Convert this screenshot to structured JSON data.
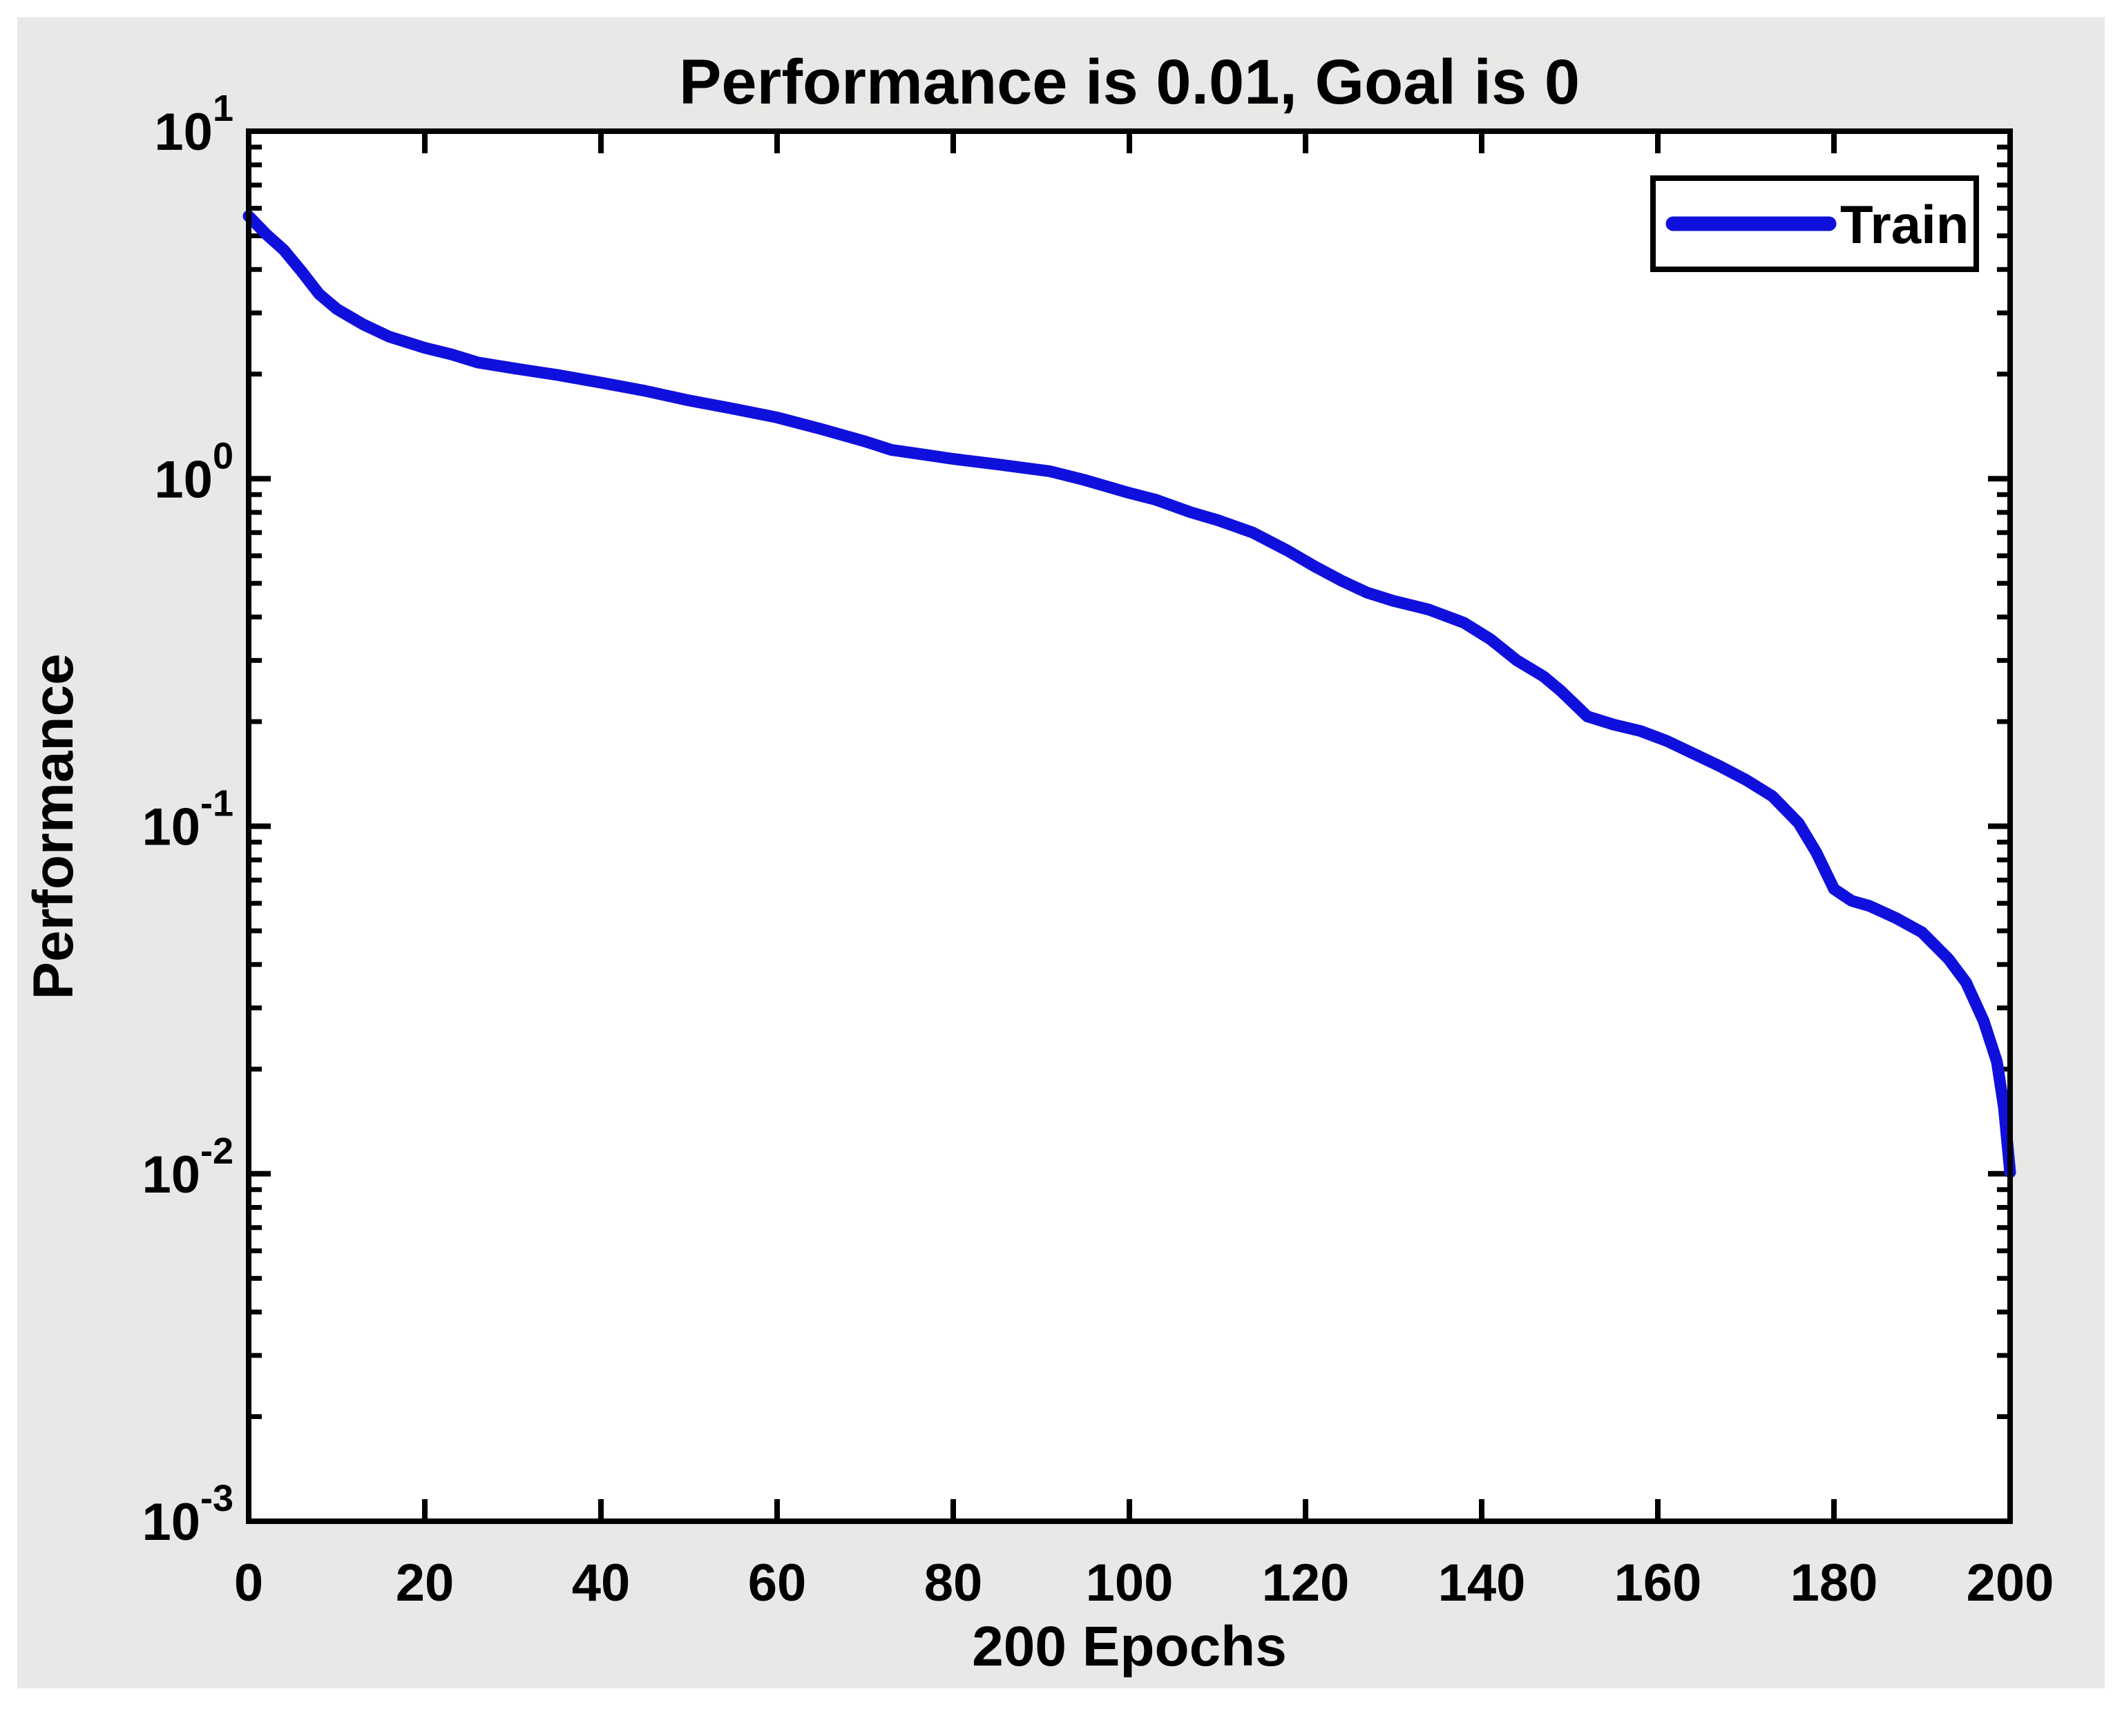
{
  "figure": {
    "background_color": "#ffffff",
    "panel_color": "#e8e8e6",
    "plot_background": "#ffffff",
    "axis_color": "#000000"
  },
  "chart_data": {
    "type": "line",
    "title": "Performance is 0.01, Goal is 0",
    "xlabel": "200 Epochs",
    "ylabel": "Performance",
    "x_range": [
      0,
      200
    ],
    "y_scale": "log10",
    "y_range": [
      0.001,
      10
    ],
    "x_ticks": [
      0,
      20,
      40,
      60,
      80,
      100,
      120,
      140,
      160,
      180,
      200
    ],
    "y_tick_exponents": [
      1,
      0,
      -1,
      -2,
      -3
    ],
    "grid": false,
    "legend": {
      "position": "top-right",
      "entries": [
        {
          "label": "Train",
          "color": "#1010dd"
        }
      ]
    },
    "series": [
      {
        "name": "Train",
        "color": "#1010dd",
        "points": [
          [
            0,
            5.7
          ],
          [
            2,
            5.05
          ],
          [
            4,
            4.55
          ],
          [
            6,
            3.95
          ],
          [
            8,
            3.4
          ],
          [
            10,
            3.08
          ],
          [
            13,
            2.78
          ],
          [
            16,
            2.56
          ],
          [
            20,
            2.38
          ],
          [
            23,
            2.28
          ],
          [
            26,
            2.16
          ],
          [
            30,
            2.08
          ],
          [
            35,
            1.99
          ],
          [
            40,
            1.89
          ],
          [
            45,
            1.79
          ],
          [
            50,
            1.68
          ],
          [
            55,
            1.59
          ],
          [
            60,
            1.5
          ],
          [
            65,
            1.39
          ],
          [
            70,
            1.28
          ],
          [
            73,
            1.21
          ],
          [
            77,
            1.17
          ],
          [
            80,
            1.14
          ],
          [
            85,
            1.1
          ],
          [
            91,
            1.05
          ],
          [
            95,
            0.99
          ],
          [
            100,
            0.91
          ],
          [
            103,
            0.87
          ],
          [
            107,
            0.8
          ],
          [
            110,
            0.76
          ],
          [
            114,
            0.7
          ],
          [
            118,
            0.62
          ],
          [
            121,
            0.56
          ],
          [
            124,
            0.51
          ],
          [
            127,
            0.47
          ],
          [
            130,
            0.445
          ],
          [
            134,
            0.42
          ],
          [
            138,
            0.385
          ],
          [
            141,
            0.345
          ],
          [
            144,
            0.3
          ],
          [
            147,
            0.27
          ],
          [
            149,
            0.245
          ],
          [
            152,
            0.207
          ],
          [
            155,
            0.196
          ],
          [
            158,
            0.188
          ],
          [
            161,
            0.176
          ],
          [
            164,
            0.162
          ],
          [
            167,
            0.149
          ],
          [
            170,
            0.136
          ],
          [
            173,
            0.122
          ],
          [
            176,
            0.102
          ],
          [
            178,
            0.084
          ],
          [
            180,
            0.066
          ],
          [
            182,
            0.061
          ],
          [
            184,
            0.059
          ],
          [
            187,
            0.0545
          ],
          [
            190,
            0.0495
          ],
          [
            193,
            0.0415
          ],
          [
            195,
            0.0355
          ],
          [
            197,
            0.0275
          ],
          [
            198.5,
            0.021
          ],
          [
            199.3,
            0.0155
          ],
          [
            200,
            0.0101
          ]
        ]
      }
    ]
  }
}
